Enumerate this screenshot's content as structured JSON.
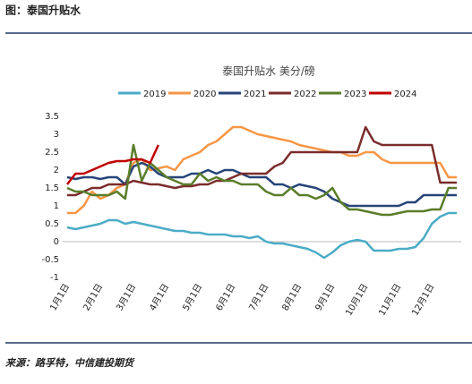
{
  "header": {
    "title": "图：泰国升贴水"
  },
  "chart_data": {
    "type": "line",
    "title": "泰国升贴水 美分/磅",
    "categories": [
      "1月1日",
      null,
      null,
      null,
      "2月1日",
      null,
      null,
      null,
      "3月1日",
      null,
      null,
      null,
      "4月1日",
      null,
      null,
      null,
      "5月1日",
      null,
      null,
      null,
      "6月1日",
      null,
      null,
      null,
      "7月1日",
      null,
      null,
      null,
      "8月1日",
      null,
      null,
      null,
      "9月1日",
      null,
      null,
      null,
      "10月1日",
      null,
      null,
      null,
      "11月1日",
      null,
      null,
      null,
      "12月1日",
      null,
      null,
      null
    ],
    "series": [
      {
        "name": "2019",
        "color": "#4bacc6",
        "values": [
          0.4,
          0.35,
          0.4,
          0.45,
          0.5,
          0.6,
          0.6,
          0.5,
          0.55,
          0.5,
          0.45,
          0.4,
          0.35,
          0.3,
          0.3,
          0.25,
          0.25,
          0.2,
          0.2,
          0.2,
          0.15,
          0.15,
          0.1,
          0.15,
          0.0,
          -0.05,
          -0.05,
          -0.1,
          -0.15,
          -0.2,
          -0.3,
          -0.45,
          -0.3,
          -0.1,
          0.0,
          0.05,
          0.0,
          -0.25,
          -0.25,
          -0.25,
          -0.2,
          -0.2,
          -0.15,
          0.1,
          0.5,
          0.7,
          0.8,
          0.8
        ]
      },
      {
        "name": "2020",
        "color": "#f79646",
        "values": [
          0.8,
          0.8,
          1.0,
          1.4,
          1.2,
          1.3,
          1.5,
          1.6,
          2.2,
          2.3,
          2.0,
          2.05,
          2.1,
          2.0,
          2.3,
          2.4,
          2.5,
          2.7,
          2.8,
          3.0,
          3.2,
          3.2,
          3.1,
          3.0,
          2.95,
          2.9,
          2.85,
          2.8,
          2.7,
          2.65,
          2.6,
          2.55,
          2.5,
          2.5,
          2.4,
          2.4,
          2.5,
          2.5,
          2.3,
          2.2,
          2.2,
          2.2,
          2.2,
          2.2,
          2.2,
          2.2,
          1.8,
          1.8
        ]
      },
      {
        "name": "2021",
        "color": "#264478",
        "values": [
          1.8,
          1.75,
          1.8,
          1.8,
          1.75,
          1.8,
          1.8,
          1.6,
          2.1,
          2.2,
          2.1,
          1.9,
          1.8,
          1.8,
          1.8,
          1.9,
          1.9,
          2.0,
          1.9,
          2.0,
          2.0,
          1.9,
          1.8,
          1.8,
          1.8,
          1.6,
          1.6,
          1.5,
          1.6,
          1.55,
          1.5,
          1.4,
          1.2,
          1.1,
          1.0,
          1.0,
          1.0,
          1.0,
          1.0,
          1.0,
          1.0,
          1.1,
          1.1,
          1.3,
          1.3,
          1.3,
          1.3,
          1.3
        ]
      },
      {
        "name": "2022",
        "color": "#7b2c2c",
        "values": [
          1.3,
          1.3,
          1.4,
          1.5,
          1.5,
          1.6,
          1.6,
          1.6,
          1.7,
          1.65,
          1.6,
          1.6,
          1.55,
          1.5,
          1.55,
          1.55,
          1.6,
          1.6,
          1.7,
          1.7,
          1.8,
          1.9,
          1.9,
          1.9,
          1.9,
          2.1,
          2.2,
          2.5,
          2.5,
          2.5,
          2.5,
          2.5,
          2.5,
          2.5,
          2.5,
          2.5,
          3.2,
          2.8,
          2.7,
          2.7,
          2.7,
          2.7,
          2.7,
          2.7,
          2.7,
          1.65,
          1.65,
          1.65
        ]
      },
      {
        "name": "2023",
        "color": "#5a7d2a",
        "values": [
          1.5,
          1.4,
          1.4,
          1.3,
          1.3,
          1.3,
          1.4,
          1.2,
          2.7,
          1.7,
          2.2,
          2.0,
          1.8,
          1.7,
          1.6,
          1.6,
          1.9,
          1.7,
          1.8,
          1.7,
          1.7,
          1.6,
          1.6,
          1.6,
          1.4,
          1.3,
          1.3,
          1.5,
          1.3,
          1.3,
          1.2,
          1.3,
          1.5,
          1.1,
          0.9,
          0.9,
          0.85,
          0.8,
          0.75,
          0.75,
          0.8,
          0.85,
          0.85,
          0.85,
          0.9,
          0.9,
          1.5,
          1.5
        ]
      },
      {
        "name": "2024",
        "color": "#c00000",
        "values": [
          1.6,
          1.9,
          1.9,
          2.0,
          2.1,
          2.2,
          2.25,
          2.25,
          2.3,
          2.3,
          2.2,
          2.7,
          null,
          null,
          null,
          null,
          null,
          null,
          null,
          null,
          null,
          null,
          null,
          null,
          null,
          null,
          null,
          null,
          null,
          null,
          null,
          null,
          null,
          null,
          null,
          null,
          null,
          null,
          null,
          null,
          null,
          null,
          null,
          null,
          null,
          null,
          null,
          null
        ]
      }
    ],
    "ylim": [
      -1,
      3.5
    ],
    "yticks": [
      -1,
      -0.5,
      0,
      0.5,
      1,
      1.5,
      2,
      2.5,
      3,
      3.5
    ],
    "grid": false,
    "legend": "top"
  },
  "source": "来源：路孚特，中信建投期货"
}
